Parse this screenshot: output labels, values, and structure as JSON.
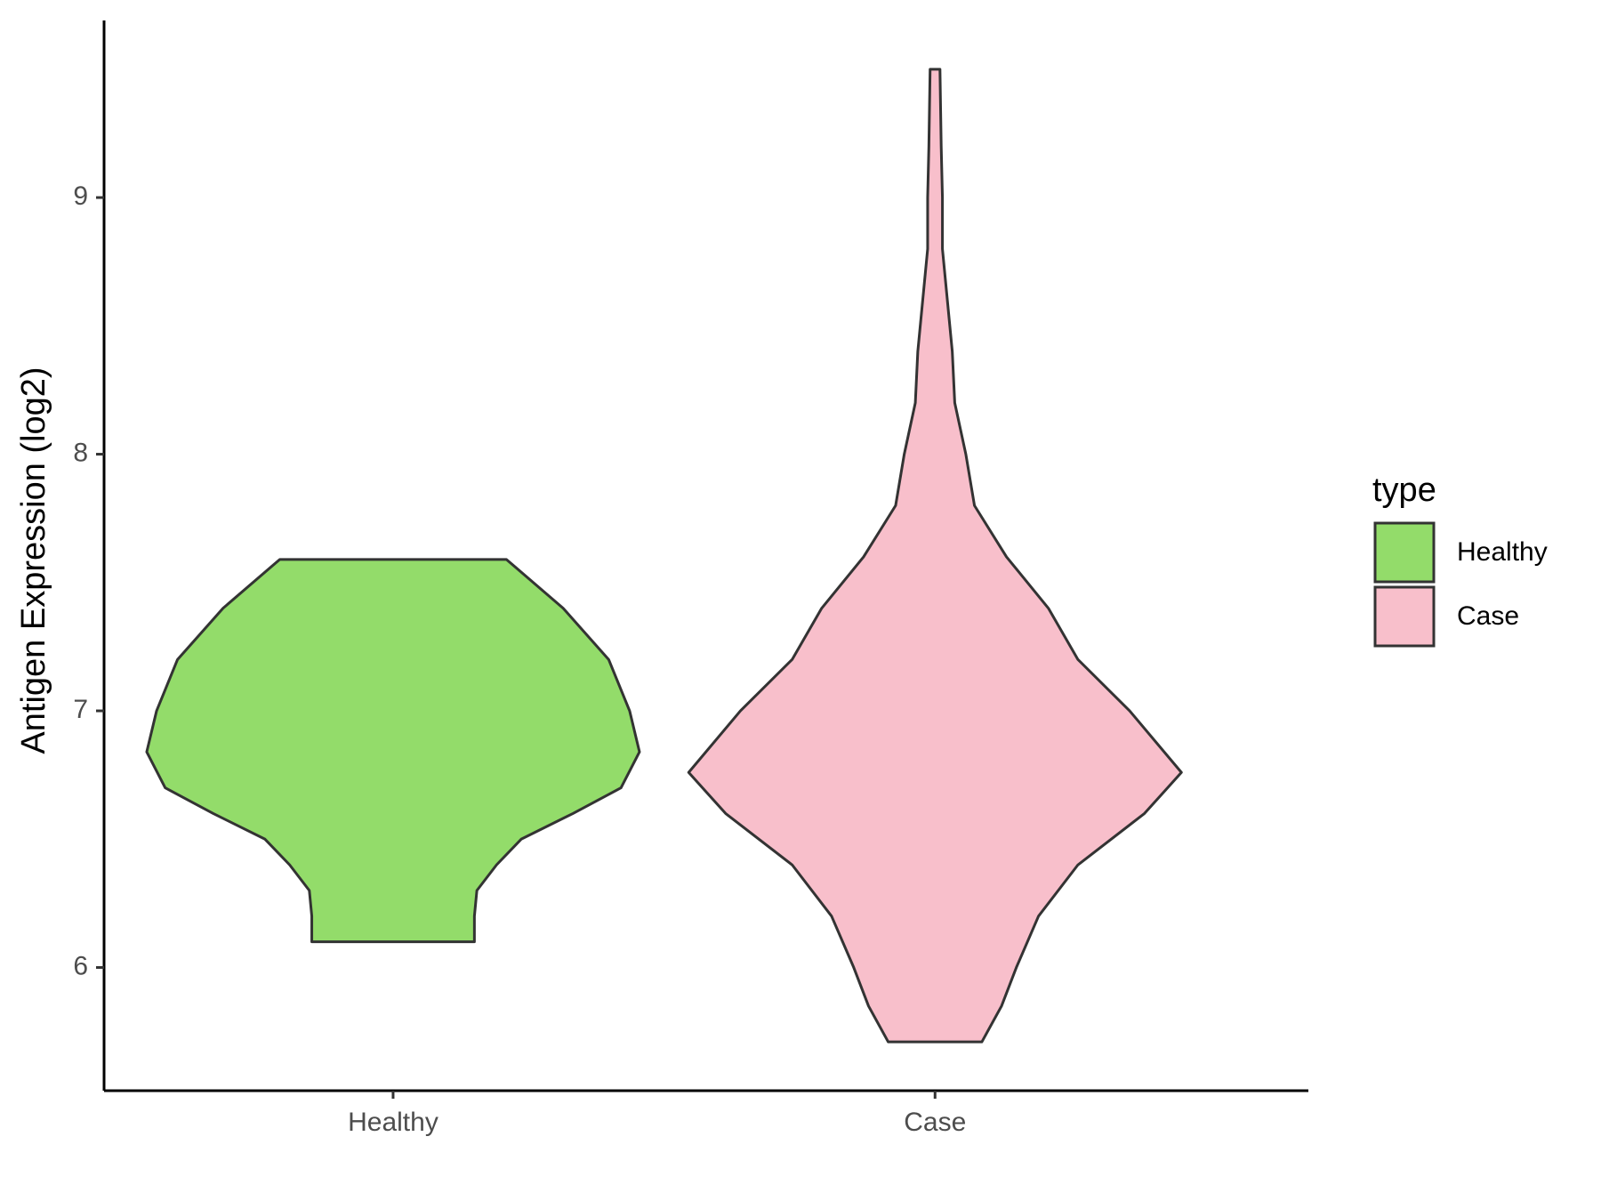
{
  "chart_data": {
    "type": "violin",
    "y_label": "Antigen Expression (log2)",
    "legend_title": "type",
    "categories": [
      "Healthy",
      "Case"
    ],
    "series": [
      {
        "name": "Healthy",
        "color": "#93dc6a",
        "y": [
          7.59,
          7.4,
          7.2,
          7.0,
          6.84,
          6.7,
          6.6,
          6.5,
          6.4,
          6.3,
          6.2,
          6.1
        ],
        "density": [
          0.46,
          0.69,
          0.875,
          0.96,
          1.0,
          0.925,
          0.73,
          0.52,
          0.42,
          0.34,
          0.33,
          0.33
        ]
      },
      {
        "name": "Case",
        "color": "#f8bfcb",
        "y": [
          9.5,
          9.2,
          9.0,
          8.8,
          8.6,
          8.4,
          8.2,
          8.0,
          7.8,
          7.6,
          7.4,
          7.2,
          7.0,
          6.76,
          6.6,
          6.4,
          6.2,
          6.0,
          5.85,
          5.71
        ],
        "density": [
          0.02,
          0.025,
          0.03,
          0.03,
          0.05,
          0.07,
          0.08,
          0.125,
          0.16,
          0.29,
          0.46,
          0.58,
          0.79,
          1.0,
          0.85,
          0.58,
          0.42,
          0.33,
          0.27,
          0.19
        ]
      }
    ],
    "ylim": [
      5.52,
      9.69
    ],
    "yticks": [
      6,
      7,
      8,
      9
    ],
    "grid": false
  }
}
